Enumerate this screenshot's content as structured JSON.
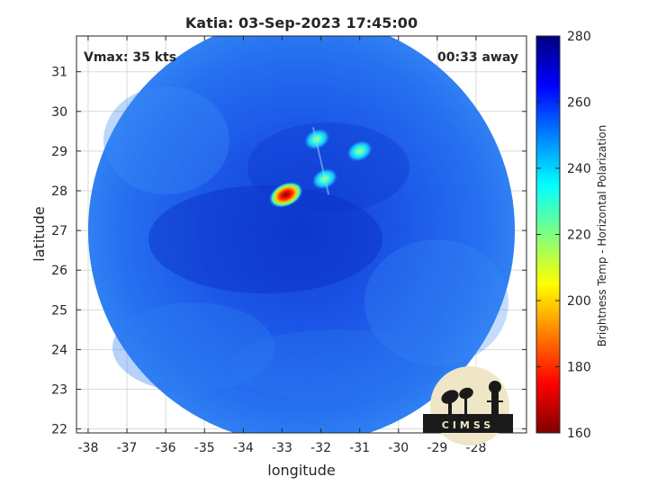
{
  "title": "Katia: 03-Sep-2023 17:45:00",
  "annotation_left": "Vmax: 35 kts",
  "annotation_right": "00:33 away",
  "xlabel": "longitude",
  "ylabel": "latitude",
  "colorbar": {
    "label": "Brightness Temp - Horizontal Polarization",
    "range": [
      160,
      280
    ],
    "ticks": [
      "160",
      "180",
      "200",
      "220",
      "240",
      "260",
      "280"
    ],
    "colormap": "jet"
  },
  "logo_text": "CIMSS",
  "map": {
    "xlim": [
      -38.3,
      -26.7
    ],
    "ylim": [
      21.9,
      31.9
    ],
    "xticks": [
      "-38",
      "-37",
      "-36",
      "-35",
      "-34",
      "-33",
      "-32",
      "-31",
      "-30",
      "-29",
      "-28"
    ],
    "yticks": [
      "22",
      "23",
      "24",
      "25",
      "26",
      "27",
      "28",
      "29",
      "30",
      "31"
    ],
    "grid": true,
    "swath": {
      "center_lon": -32.5,
      "center_lat": 27.0,
      "radius_deg": 5.5
    },
    "hot_spots": [
      {
        "lon": -32.9,
        "lat": 27.9,
        "temp": 170
      },
      {
        "lon": -31.9,
        "lat": 28.3,
        "temp": 232
      },
      {
        "lon": -31.0,
        "lat": 29.0,
        "temp": 236
      },
      {
        "lon": -32.1,
        "lat": 29.3,
        "temp": 238
      }
    ],
    "background_temp": 258
  }
}
